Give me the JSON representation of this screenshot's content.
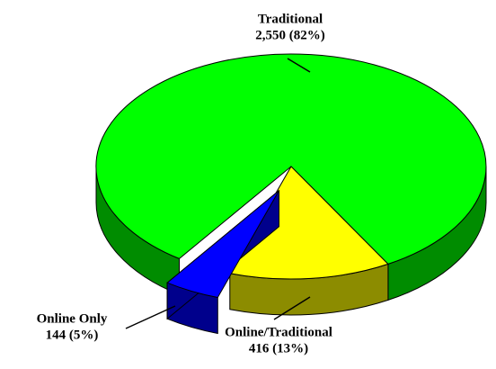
{
  "chart_data": {
    "type": "pie",
    "categories": [
      "Traditional",
      "Online/Traditional",
      "Online Only"
    ],
    "values": [
      2550,
      416,
      144
    ],
    "value_labels": [
      "2,550 (82%)",
      "416 (13%)",
      "144 (5%)"
    ],
    "colors": [
      "#00ff00",
      "#ffff00",
      "#0000ff"
    ],
    "exploded": [
      "Online Only"
    ]
  }
}
